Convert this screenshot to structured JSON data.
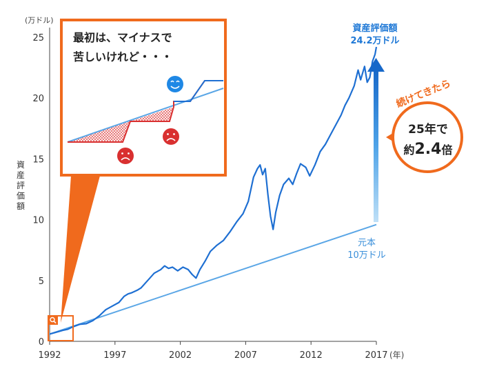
{
  "chart_data": {
    "type": "line",
    "x_unit_label": "(年)",
    "y_unit_label": "(万ドル)",
    "ylabel": "資産評価額",
    "xlim": [
      1992,
      2017
    ],
    "ylim": [
      0,
      25
    ],
    "x_ticks": [
      "1992",
      "1997",
      "2002",
      "2007",
      "2012",
      "2017"
    ],
    "y_ticks": [
      "0",
      "5",
      "10",
      "15",
      "20",
      "25"
    ],
    "grid": false,
    "series": [
      {
        "name": "資産評価額",
        "points": [
          [
            1992.0,
            0.6
          ],
          [
            1992.5,
            0.75
          ],
          [
            1993.0,
            0.9
          ],
          [
            1993.4,
            1.0
          ],
          [
            1993.8,
            1.2
          ],
          [
            1994.3,
            1.4
          ],
          [
            1994.8,
            1.45
          ],
          [
            1995.3,
            1.7
          ],
          [
            1995.8,
            2.1
          ],
          [
            1996.3,
            2.6
          ],
          [
            1996.8,
            2.9
          ],
          [
            1997.3,
            3.2
          ],
          [
            1997.7,
            3.7
          ],
          [
            1998.0,
            3.9
          ],
          [
            1998.3,
            4.0
          ],
          [
            1998.7,
            4.2
          ],
          [
            1999.0,
            4.4
          ],
          [
            1999.5,
            5.0
          ],
          [
            2000.0,
            5.6
          ],
          [
            2000.5,
            5.9
          ],
          [
            2000.8,
            6.2
          ],
          [
            2001.1,
            6.0
          ],
          [
            2001.4,
            6.1
          ],
          [
            2001.8,
            5.8
          ],
          [
            2002.2,
            6.1
          ],
          [
            2002.6,
            5.9
          ],
          [
            2002.9,
            5.5
          ],
          [
            2003.2,
            5.2
          ],
          [
            2003.5,
            5.9
          ],
          [
            2003.9,
            6.6
          ],
          [
            2004.3,
            7.4
          ],
          [
            2004.8,
            7.9
          ],
          [
            2005.3,
            8.3
          ],
          [
            2005.8,
            9.0
          ],
          [
            2006.3,
            9.8
          ],
          [
            2006.8,
            10.5
          ],
          [
            2007.2,
            11.5
          ],
          [
            2007.6,
            13.5
          ],
          [
            2007.9,
            14.2
          ],
          [
            2008.1,
            14.5
          ],
          [
            2008.3,
            13.7
          ],
          [
            2008.5,
            14.2
          ],
          [
            2008.7,
            12.1
          ],
          [
            2008.9,
            10.3
          ],
          [
            2009.1,
            9.2
          ],
          [
            2009.3,
            10.6
          ],
          [
            2009.6,
            12.0
          ],
          [
            2009.9,
            12.9
          ],
          [
            2010.3,
            13.4
          ],
          [
            2010.6,
            12.9
          ],
          [
            2010.9,
            13.8
          ],
          [
            2011.2,
            14.6
          ],
          [
            2011.6,
            14.3
          ],
          [
            2011.9,
            13.6
          ],
          [
            2012.3,
            14.5
          ],
          [
            2012.7,
            15.6
          ],
          [
            2013.1,
            16.2
          ],
          [
            2013.5,
            17.0
          ],
          [
            2013.9,
            17.8
          ],
          [
            2014.3,
            18.6
          ],
          [
            2014.6,
            19.4
          ],
          [
            2014.9,
            20.0
          ],
          [
            2015.3,
            21.0
          ],
          [
            2015.6,
            22.3
          ],
          [
            2015.8,
            21.5
          ],
          [
            2016.1,
            22.6
          ],
          [
            2016.3,
            21.3
          ],
          [
            2016.5,
            21.7
          ],
          [
            2016.7,
            23.0
          ],
          [
            2016.9,
            23.6
          ],
          [
            2017.0,
            24.2
          ]
        ]
      },
      {
        "name": "元本",
        "points": [
          [
            1992.0,
            0.6
          ],
          [
            2017.0,
            9.6
          ]
        ]
      }
    ],
    "annotations": {
      "final_value_title": "資産評価額",
      "final_value": "24.2万ドル",
      "principal_title": "元本",
      "principal_value": "10万ドル",
      "multiplier_line1": "25年で",
      "multiplier_line2_prefix": "約",
      "multiplier_line2_value": "2.4",
      "multiplier_line2_suffix": "倍",
      "arrow_caption": "続けてきたら",
      "zoom_line1": "最初は、マイナスで",
      "zoom_line2": "苦しいけれど・・・"
    },
    "colors": {
      "asset_line": "#1e6fd2",
      "principal_line": "#5aa6e6",
      "accent_orange": "#f06a1d",
      "callout_blue_text": "#1e78d6",
      "loss_red": "#d93030",
      "smile_blue": "#1f88e5"
    }
  }
}
